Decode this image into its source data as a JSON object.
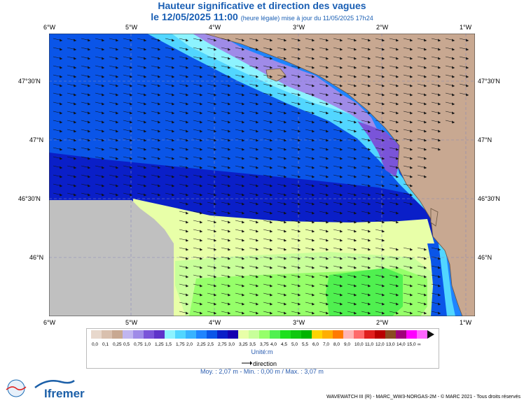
{
  "title": "Hauteur significative et direction des vagues",
  "subtitle_main": "le 12/05/2025 11:00",
  "subtitle_note": "(heure légale) mise à jour du 11/05/2025 17h24",
  "lon_labels": [
    "6°W",
    "5°W",
    "4°W",
    "3°W",
    "2°W",
    "1°W"
  ],
  "lat_labels": [
    "47°30'N",
    "47°N",
    "46°30'N",
    "46°N"
  ],
  "legend": {
    "values": [
      "0,0",
      "0,1",
      "0,25",
      "0,5",
      "0,75",
      "1,0",
      "1,25",
      "1,5",
      "1,75",
      "2,0",
      "2,25",
      "2,5",
      "2,75",
      "3,0",
      "3,25",
      "3,5",
      "3,75",
      "4,0",
      "4,5",
      "5,0",
      "5,5",
      "6,0",
      "7,0",
      "8,0",
      "9,0",
      "10,0",
      "11,0",
      "12,0",
      "13,0",
      "14,0",
      "15,0",
      "∞"
    ],
    "colors": [
      "#e8d8cc",
      "#d9c0ae",
      "#c8a891",
      "#c0b5f0",
      "#9f8be8",
      "#7a54d9",
      "#5e33c9",
      "#8df3ff",
      "#52d6ff",
      "#38b3ff",
      "#1f84ff",
      "#0a55e8",
      "#0a1fc8",
      "#1500b0",
      "#e8ffa8",
      "#c8ff9a",
      "#96ff6a",
      "#50f050",
      "#1ee01e",
      "#10c810",
      "#00b400",
      "#ffd400",
      "#ffae00",
      "#ff7a00",
      "#ffb4b4",
      "#ff6a6a",
      "#e0201e",
      "#b80000",
      "#8a4a22",
      "#a0007a",
      "#ff00ff",
      "#ff66ff"
    ],
    "unit": "Unité:m",
    "direction_label": "direction"
  },
  "stats": "Moy. : 2,07 m   -   Min. : 0,00 m / Max. : 3,07 m",
  "footer": "WAVEWATCH III (R) - MARC_WW3-NORGAS-2M - © MARC 2021 - Tous droits réservés",
  "logos": {
    "lops": "LOPS",
    "ifremer": "Ifremer"
  }
}
